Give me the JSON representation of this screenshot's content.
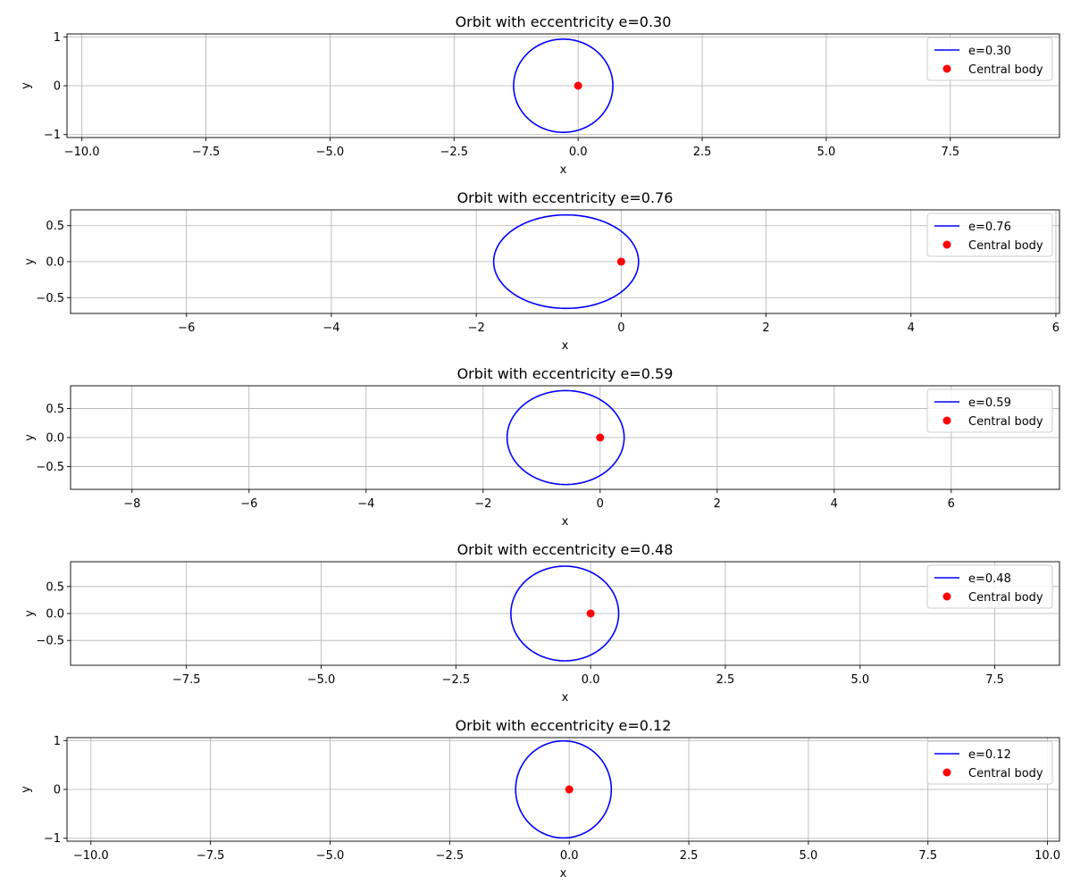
{
  "colors": {
    "orbit": "#0000ff",
    "central_body": "#ff0000",
    "grid": "#b0b0b0",
    "axes": "#000000",
    "legend_border": "#cccccc"
  },
  "chart_data": [
    {
      "type": "line",
      "title": "Orbit with eccentricity e=0.30",
      "xlabel": "x",
      "ylabel": "y",
      "xlim": [
        -10.3,
        9.7
      ],
      "ylim": [
        -1.06,
        1.06
      ],
      "xticks": [
        -10.0,
        -7.5,
        -5.0,
        -2.5,
        0.0,
        2.5,
        5.0,
        7.5
      ],
      "xtick_labels": [
        "−10.0",
        "−7.5",
        "−5.0",
        "−2.5",
        "0.0",
        "2.5",
        "5.0",
        "7.5"
      ],
      "yticks": [
        -1,
        0,
        1
      ],
      "ytick_labels": [
        "−1",
        "0",
        "1"
      ],
      "grid": true,
      "legend_location": "top-right",
      "series": [
        {
          "name": "e=0.30",
          "kind": "orbit",
          "semi_major_axis": 1,
          "eccentricity": 0.3
        },
        {
          "name": "Central body",
          "kind": "point",
          "x": 0,
          "y": 0
        }
      ]
    },
    {
      "type": "line",
      "title": "Orbit with eccentricity e=0.76",
      "xlabel": "x",
      "ylabel": "y",
      "xlim": [
        -7.6,
        6.05
      ],
      "ylim": [
        -0.72,
        0.72
      ],
      "xticks": [
        -6,
        -4,
        -2,
        0,
        2,
        4,
        6
      ],
      "xtick_labels": [
        "−6",
        "−4",
        "−2",
        "0",
        "2",
        "4",
        "6"
      ],
      "yticks": [
        -0.5,
        0.0,
        0.5
      ],
      "ytick_labels": [
        "−0.5",
        "0.0",
        "0.5"
      ],
      "grid": true,
      "legend_location": "top-right",
      "series": [
        {
          "name": "e=0.76",
          "kind": "orbit",
          "semi_major_axis": 1,
          "eccentricity": 0.76
        },
        {
          "name": "Central body",
          "kind": "point",
          "x": 0,
          "y": 0
        }
      ]
    },
    {
      "type": "line",
      "title": "Orbit with eccentricity e=0.59",
      "xlabel": "x",
      "ylabel": "y",
      "xlim": [
        -9.05,
        7.85
      ],
      "ylim": [
        -0.89,
        0.89
      ],
      "xticks": [
        -8,
        -6,
        -4,
        -2,
        0,
        2,
        4,
        6
      ],
      "xtick_labels": [
        "−8",
        "−6",
        "−4",
        "−2",
        "0",
        "2",
        "4",
        "6"
      ],
      "yticks": [
        -0.5,
        0.0,
        0.5
      ],
      "ytick_labels": [
        "−0.5",
        "0.0",
        "0.5"
      ],
      "grid": true,
      "legend_location": "top-right",
      "series": [
        {
          "name": "e=0.59",
          "kind": "orbit",
          "semi_major_axis": 1,
          "eccentricity": 0.59
        },
        {
          "name": "Central body",
          "kind": "point",
          "x": 0,
          "y": 0
        }
      ]
    },
    {
      "type": "line",
      "title": "Orbit with eccentricity e=0.48",
      "xlabel": "x",
      "ylabel": "y",
      "xlim": [
        -9.65,
        8.7
      ],
      "ylim": [
        -0.96,
        0.96
      ],
      "xticks": [
        -7.5,
        -5.0,
        -2.5,
        0.0,
        2.5,
        5.0,
        7.5
      ],
      "xtick_labels": [
        "−7.5",
        "−5.0",
        "−2.5",
        "0.0",
        "2.5",
        "5.0",
        "7.5"
      ],
      "yticks": [
        -0.5,
        0.0,
        0.5
      ],
      "ytick_labels": [
        "−0.5",
        "0.0",
        "0.5"
      ],
      "grid": true,
      "legend_location": "top-right",
      "series": [
        {
          "name": "e=0.48",
          "kind": "orbit",
          "semi_major_axis": 1,
          "eccentricity": 0.48
        },
        {
          "name": "Central body",
          "kind": "point",
          "x": 0,
          "y": 0
        }
      ]
    },
    {
      "type": "line",
      "title": "Orbit with eccentricity e=0.12",
      "xlabel": "x",
      "ylabel": "y",
      "xlim": [
        -10.5,
        10.25
      ],
      "ylim": [
        -1.06,
        1.06
      ],
      "xticks": [
        -10.0,
        -7.5,
        -5.0,
        -2.5,
        0.0,
        2.5,
        5.0,
        7.5,
        10.0
      ],
      "xtick_labels": [
        "−10.0",
        "−7.5",
        "−5.0",
        "−2.5",
        "0.0",
        "2.5",
        "5.0",
        "7.5",
        "10.0"
      ],
      "yticks": [
        -1,
        0,
        1
      ],
      "ytick_labels": [
        "−1",
        "0",
        "1"
      ],
      "grid": true,
      "legend_location": "top-right",
      "series": [
        {
          "name": "e=0.12",
          "kind": "orbit",
          "semi_major_axis": 1,
          "eccentricity": 0.12
        },
        {
          "name": "Central body",
          "kind": "point",
          "x": 0,
          "y": 0
        }
      ]
    }
  ]
}
